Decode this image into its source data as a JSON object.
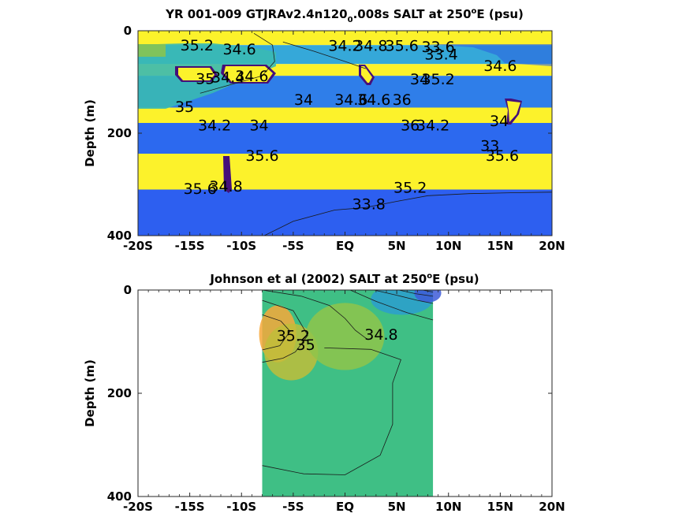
{
  "chart_data": [
    {
      "type": "heatmap",
      "title": "YR 001-009 GTJRAv2.4n120",
      "title_sub": "0",
      "title_tail": ".008s SALT at 250",
      "title_sup": "o",
      "title_end": "E (psu)",
      "ylabel": "Depth (m)",
      "xlim": [
        -20,
        20
      ],
      "ylim": [
        0,
        400
      ],
      "y_reversed": true,
      "xticks": [
        {
          "v": -20,
          "label": "-20S"
        },
        {
          "v": -15,
          "label": "-15S"
        },
        {
          "v": -10,
          "label": "-10S"
        },
        {
          "v": -5,
          "label": "-5S"
        },
        {
          "v": 0,
          "label": "EQ"
        },
        {
          "v": 5,
          "label": "5N"
        },
        {
          "v": 10,
          "label": "10N"
        },
        {
          "v": 15,
          "label": "15N"
        },
        {
          "v": 20,
          "label": "20N"
        }
      ],
      "yticks": [
        0,
        200,
        400
      ],
      "bands": [
        {
          "d0": 0,
          "d1": 28,
          "color": "#fcf22b"
        },
        {
          "d0": 28,
          "d1": 65,
          "color": "#35a8d9"
        },
        {
          "d0": 65,
          "d1": 88,
          "color": "#fcf22b"
        },
        {
          "d0": 88,
          "d1": 150,
          "color": "#2f7ee9"
        },
        {
          "d0": 150,
          "d1": 180,
          "color": "#fcf22b"
        },
        {
          "d0": 180,
          "d1": 240,
          "color": "#2c69ef"
        },
        {
          "d0": 240,
          "d1": 310,
          "color": "#fcf22b"
        },
        {
          "d0": 310,
          "d1": 400,
          "color": "#2d5ff0"
        }
      ],
      "contour_labels": [
        {
          "x": -14.3,
          "y": 30,
          "t": "35.2"
        },
        {
          "x": -10.2,
          "y": 38,
          "t": "34.6"
        },
        {
          "x": -13.5,
          "y": 95,
          "t": "35"
        },
        {
          "x": -11.3,
          "y": 92,
          "t": "34.4"
        },
        {
          "x": -9.0,
          "y": 90,
          "t": "34.6"
        },
        {
          "x": -15.5,
          "y": 150,
          "t": "35"
        },
        {
          "x": -12.6,
          "y": 186,
          "t": "34.2"
        },
        {
          "x": -8.3,
          "y": 186,
          "t": "34"
        },
        {
          "x": -4.0,
          "y": 136,
          "t": "34"
        },
        {
          "x": 0.0,
          "y": 31,
          "t": "34.2"
        },
        {
          "x": 2.5,
          "y": 31,
          "t": "34.8"
        },
        {
          "x": 5.5,
          "y": 31,
          "t": "35.6"
        },
        {
          "x": 9.0,
          "y": 33,
          "t": "33.6"
        },
        {
          "x": 9.3,
          "y": 48,
          "t": "33.4"
        },
        {
          "x": 7.2,
          "y": 96,
          "t": "34"
        },
        {
          "x": 9.0,
          "y": 96,
          "t": "35.2"
        },
        {
          "x": 0.6,
          "y": 136,
          "t": "34.6"
        },
        {
          "x": 2.8,
          "y": 136,
          "t": "34.6"
        },
        {
          "x": 5.5,
          "y": 136,
          "t": "36"
        },
        {
          "x": 6.3,
          "y": 186,
          "t": "36"
        },
        {
          "x": 8.5,
          "y": 186,
          "t": "34.2"
        },
        {
          "x": 15.0,
          "y": 70,
          "t": "34.6"
        },
        {
          "x": 14.9,
          "y": 178,
          "t": "34"
        },
        {
          "x": 14.0,
          "y": 226,
          "t": "33"
        },
        {
          "x": 15.2,
          "y": 245,
          "t": "35.6"
        },
        {
          "x": -8.0,
          "y": 245,
          "t": "35.6"
        },
        {
          "x": -14.0,
          "y": 310,
          "t": "35.6"
        },
        {
          "x": -11.5,
          "y": 305,
          "t": "34.8"
        },
        {
          "x": 6.3,
          "y": 308,
          "t": "35.2"
        },
        {
          "x": 2.3,
          "y": 340,
          "t": "33.8"
        }
      ],
      "contour_lines": [
        {
          "level": 33.8,
          "points": [
            [
              -7.8,
              400
            ],
            [
              -5,
              372
            ],
            [
              -1,
              350
            ],
            [
              2,
              345
            ],
            [
              5,
              333
            ],
            [
              8,
              322
            ],
            [
              12,
              318
            ],
            [
              17,
              316
            ],
            [
              20,
              315
            ]
          ]
        },
        {
          "level": 34.2,
          "points": [
            [
              -6,
              22
            ],
            [
              -3,
              40
            ],
            [
              0,
              60
            ],
            [
              2,
              74
            ]
          ]
        },
        {
          "level": 34.6,
          "points": [
            [
              -8.8,
              5
            ],
            [
              -7,
              28
            ],
            [
              -6.8,
              60
            ],
            [
              -8,
              88
            ],
            [
              -11,
              105
            ],
            [
              -14,
              122
            ]
          ]
        }
      ]
    },
    {
      "type": "heatmap",
      "title": "Johnson et al (2002) SALT at 250",
      "title_sup": "o",
      "title_end": "E (psu)",
      "ylabel": "Depth (m)",
      "xlim": [
        -20,
        20
      ],
      "ylim": [
        0,
        400
      ],
      "y_reversed": true,
      "data_xrange": [
        -8,
        8.5
      ],
      "xticks": [
        {
          "v": -20,
          "label": "-20S"
        },
        {
          "v": -15,
          "label": "-15S"
        },
        {
          "v": -10,
          "label": "-10S"
        },
        {
          "v": -5,
          "label": "-5S"
        },
        {
          "v": 0,
          "label": "EQ"
        },
        {
          "v": 5,
          "label": "5N"
        },
        {
          "v": 10,
          "label": "10N"
        },
        {
          "v": 15,
          "label": "15N"
        },
        {
          "v": 20,
          "label": "20N"
        }
      ],
      "yticks": [
        0,
        200,
        400
      ],
      "background_color": "#3fbf85",
      "patches": [
        {
          "x": -6.5,
          "y": 85,
          "rx": 1.8,
          "ry": 55,
          "color": "#f7a83a"
        },
        {
          "x": -5.2,
          "y": 120,
          "rx": 2.6,
          "ry": 55,
          "color": "#c0bd3a"
        },
        {
          "x": 0.0,
          "y": 90,
          "rx": 3.8,
          "ry": 65,
          "color": "#8fc44a"
        },
        {
          "x": 5.5,
          "y": 18,
          "rx": 3.0,
          "ry": 30,
          "color": "#2c9ecf"
        },
        {
          "x": 8.0,
          "y": 6,
          "rx": 1.3,
          "ry": 18,
          "color": "#3e5cd8"
        }
      ],
      "contour_labels": [
        {
          "x": -5.0,
          "y": 90,
          "t": "35.2"
        },
        {
          "x": -3.8,
          "y": 108,
          "t": "35"
        },
        {
          "x": 3.5,
          "y": 88,
          "t": "34.8"
        }
      ],
      "contour_lines": [
        {
          "level": 35.2,
          "points": [
            [
              -8,
              48
            ],
            [
              -6.2,
              60
            ],
            [
              -5.3,
              80
            ],
            [
              -6.3,
              108
            ],
            [
              -8,
              116
            ]
          ]
        },
        {
          "level": 35,
          "points": [
            [
              -8,
              20
            ],
            [
              -5,
              40
            ],
            [
              -3.6,
              88
            ],
            [
              -4.8,
              120
            ],
            [
              -6,
              132
            ],
            [
              -8,
              140
            ]
          ]
        },
        {
          "level": 34.8,
          "points": [
            [
              -8,
              0
            ],
            [
              -4.2,
              12
            ],
            [
              -1.5,
              30
            ],
            [
              0,
              55
            ],
            [
              1,
              78
            ],
            [
              2.2,
              96
            ]
          ]
        },
        {
          "level": 34.8,
          "points": [
            [
              -2,
              112
            ],
            [
              2.5,
              115
            ],
            [
              5.4,
              135
            ],
            [
              4.6,
              180
            ],
            [
              4.6,
              260
            ],
            [
              3.4,
              320
            ],
            [
              0,
              358
            ],
            [
              -4,
              356
            ],
            [
              -8,
              340
            ]
          ]
        },
        {
          "level": 34.6,
          "points": [
            [
              0.5,
              0
            ],
            [
              3,
              22
            ],
            [
              6,
              44
            ],
            [
              8.5,
              58
            ]
          ]
        },
        {
          "level": 34.2,
          "points": [
            [
              2.8,
              0
            ],
            [
              5,
              10
            ],
            [
              7,
              20
            ],
            [
              8.5,
              26
            ]
          ]
        },
        {
          "level": 33.8,
          "points": [
            [
              5.2,
              0
            ],
            [
              6.8,
              7
            ],
            [
              8.5,
              12
            ]
          ]
        },
        {
          "level": 33.6,
          "points": [
            [
              7.5,
              0
            ],
            [
              8.5,
              4
            ]
          ]
        }
      ]
    }
  ]
}
